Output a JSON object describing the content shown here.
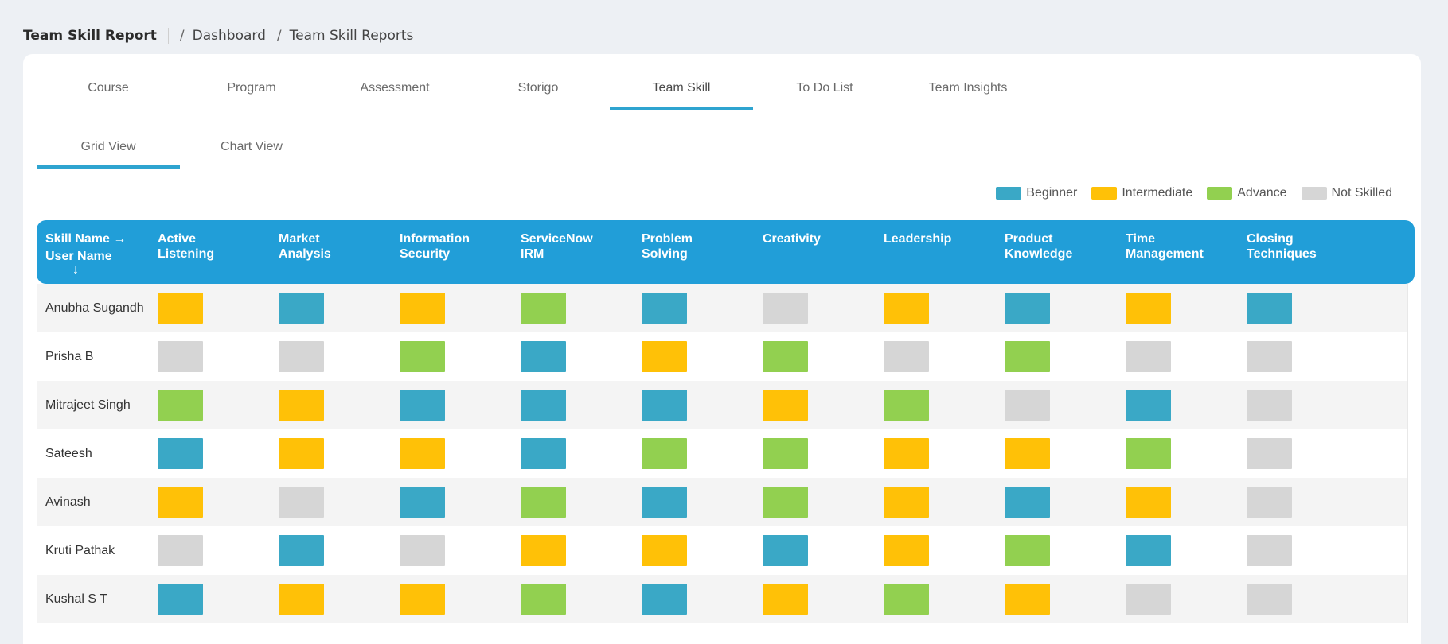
{
  "header": {
    "title": "Team Skill Report",
    "breadcrumb": [
      "Dashboard",
      "Team Skill Reports"
    ],
    "separator": "/"
  },
  "tabs": [
    "Course",
    "Program",
    "Assessment",
    "Storigo",
    "Team Skill",
    "To Do List",
    "Team Insights"
  ],
  "active_tab": "Team Skill",
  "views": [
    "Grid View",
    "Chart View"
  ],
  "active_view": "Grid View",
  "legend": [
    {
      "label": "Beginner",
      "color": "#3aa8c6"
    },
    {
      "label": "Intermediate",
      "color": "#ffc107"
    },
    {
      "label": "Advance",
      "color": "#92d050"
    },
    {
      "label": "Not Skilled",
      "color": "#d6d6d6"
    }
  ],
  "grid": {
    "corner_top": "Skill Name →",
    "corner_bottom": "User Name",
    "corner_arrow": "↓",
    "skills": [
      [
        "Active",
        "Listening"
      ],
      [
        "Market",
        "Analysis"
      ],
      [
        "Information",
        "Security"
      ],
      [
        "ServiceNow",
        "IRM"
      ],
      [
        "Problem",
        "Solving"
      ],
      [
        "Creativity",
        ""
      ],
      [
        "Leadership",
        ""
      ],
      [
        "Product",
        "Knowledge"
      ],
      [
        "Time",
        "Management"
      ],
      [
        "Closing",
        "Techniques"
      ]
    ],
    "rows": [
      {
        "user": "Anubha Sugandh",
        "levels": [
          "Intermediate",
          "Beginner",
          "Intermediate",
          "Advance",
          "Beginner",
          "Not Skilled",
          "Intermediate",
          "Beginner",
          "Intermediate",
          "Beginner"
        ]
      },
      {
        "user": "Prisha B",
        "levels": [
          "Not Skilled",
          "Not Skilled",
          "Advance",
          "Beginner",
          "Intermediate",
          "Advance",
          "Not Skilled",
          "Advance",
          "Not Skilled",
          "Not Skilled"
        ]
      },
      {
        "user": "Mitrajeet Singh",
        "levels": [
          "Advance",
          "Intermediate",
          "Beginner",
          "Beginner",
          "Beginner",
          "Intermediate",
          "Advance",
          "Not Skilled",
          "Beginner",
          "Not Skilled"
        ]
      },
      {
        "user": "Sateesh",
        "levels": [
          "Beginner",
          "Intermediate",
          "Intermediate",
          "Beginner",
          "Advance",
          "Advance",
          "Intermediate",
          "Intermediate",
          "Advance",
          "Not Skilled"
        ]
      },
      {
        "user": "Avinash",
        "levels": [
          "Intermediate",
          "Not Skilled",
          "Beginner",
          "Advance",
          "Beginner",
          "Advance",
          "Intermediate",
          "Beginner",
          "Intermediate",
          "Not Skilled"
        ]
      },
      {
        "user": "Kruti Pathak",
        "levels": [
          "Not Skilled",
          "Beginner",
          "Not Skilled",
          "Intermediate",
          "Intermediate",
          "Beginner",
          "Intermediate",
          "Advance",
          "Beginner",
          "Not Skilled"
        ]
      },
      {
        "user": "Kushal S T",
        "levels": [
          "Beginner",
          "Intermediate",
          "Intermediate",
          "Advance",
          "Beginner",
          "Intermediate",
          "Advance",
          "Intermediate",
          "Not Skilled",
          "Not Skilled"
        ]
      }
    ]
  }
}
